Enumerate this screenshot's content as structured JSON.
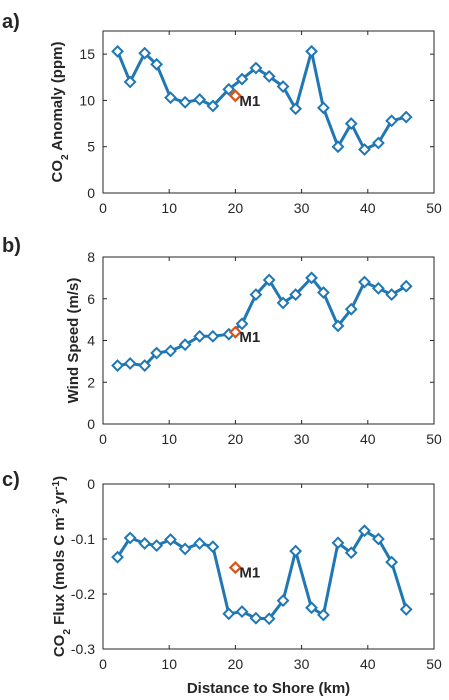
{
  "colors": {
    "series": "#1f77b4",
    "marker": "#1f77b4",
    "m1": "#d95319",
    "axis": "#262626",
    "text": "#262626"
  },
  "chart_data": [
    {
      "type": "line",
      "panel_label": "a)",
      "ylabel": "CO₂ Anomaly (ppm)",
      "xlabel": "",
      "xlim": [
        0,
        50
      ],
      "ylim": [
        0,
        17.5
      ],
      "xticks": [
        0,
        10,
        20,
        30,
        40,
        50
      ],
      "yticks": [
        0,
        5,
        10,
        15
      ],
      "xtick_labels": [
        "0",
        "10",
        "20",
        "30",
        "40",
        "50"
      ],
      "ytick_labels": [
        "0",
        "5",
        "10",
        "15"
      ],
      "series": [
        {
          "x": [
            2.2,
            4.1,
            6.3,
            8.1,
            10.2,
            12.4,
            14.6,
            16.6,
            19.0,
            21.0,
            23.1,
            25.1,
            27.2,
            29.1,
            31.5,
            33.3,
            35.5,
            37.5,
            39.5,
            41.6,
            43.6,
            45.8
          ],
          "y": [
            15.3,
            12.0,
            15.1,
            13.9,
            10.3,
            9.8,
            10.1,
            9.4,
            11.2,
            12.3,
            13.5,
            12.6,
            11.5,
            9.1,
            15.3,
            9.2,
            5.0,
            7.5,
            4.7,
            5.4,
            7.8,
            8.2
          ]
        }
      ],
      "point": {
        "label": "M1",
        "x": 20.0,
        "y": 10.5
      }
    },
    {
      "type": "line",
      "panel_label": "b)",
      "ylabel": "Wind Speed (m/s)",
      "xlabel": "",
      "xlim": [
        0,
        50
      ],
      "ylim": [
        0,
        8
      ],
      "xticks": [
        0,
        10,
        20,
        30,
        40,
        50
      ],
      "yticks": [
        0,
        2,
        4,
        6,
        8
      ],
      "xtick_labels": [
        "0",
        "10",
        "20",
        "30",
        "40",
        "50"
      ],
      "ytick_labels": [
        "0",
        "2",
        "4",
        "6",
        "8"
      ],
      "series": [
        {
          "x": [
            2.2,
            4.1,
            6.3,
            8.1,
            10.2,
            12.4,
            14.6,
            16.6,
            19.0,
            21.0,
            23.1,
            25.1,
            27.2,
            29.1,
            31.5,
            33.3,
            35.5,
            37.5,
            39.5,
            41.6,
            43.6,
            45.8
          ],
          "y": [
            2.8,
            2.9,
            2.8,
            3.4,
            3.5,
            3.8,
            4.2,
            4.2,
            4.3,
            4.8,
            6.2,
            6.9,
            5.8,
            6.2,
            7.0,
            6.3,
            4.7,
            5.5,
            6.8,
            6.5,
            6.2,
            6.6
          ]
        }
      ],
      "point": {
        "label": "M1",
        "x": 20.0,
        "y": 4.4
      }
    },
    {
      "type": "line",
      "panel_label": "c)",
      "ylabel": "CO₂ Flux (mols C m⁻² yr⁻¹)",
      "xlabel": "Distance to Shore (km)",
      "xlim": [
        0,
        50
      ],
      "ylim": [
        -0.3,
        0
      ],
      "xticks": [
        0,
        10,
        20,
        30,
        40,
        50
      ],
      "yticks": [
        -0.3,
        -0.2,
        -0.1,
        0
      ],
      "xtick_labels": [
        "0",
        "10",
        "20",
        "30",
        "40",
        "50"
      ],
      "ytick_labels": [
        "-0.3",
        "-0.2",
        "-0.1",
        "0"
      ],
      "series": [
        {
          "x": [
            2.2,
            4.1,
            6.3,
            8.1,
            10.2,
            12.4,
            14.6,
            16.6,
            19.0,
            21.0,
            23.1,
            25.1,
            27.2,
            29.1,
            31.5,
            33.3,
            35.5,
            37.5,
            39.5,
            41.6,
            43.6,
            45.8
          ],
          "y": [
            -0.133,
            -0.098,
            -0.108,
            -0.112,
            -0.101,
            -0.118,
            -0.108,
            -0.114,
            -0.236,
            -0.232,
            -0.244,
            -0.245,
            -0.212,
            -0.122,
            -0.225,
            -0.238,
            -0.107,
            -0.125,
            -0.085,
            -0.1,
            -0.142,
            -0.228
          ]
        }
      ],
      "point": {
        "label": "M1",
        "x": 20.0,
        "y": -0.152
      }
    }
  ]
}
